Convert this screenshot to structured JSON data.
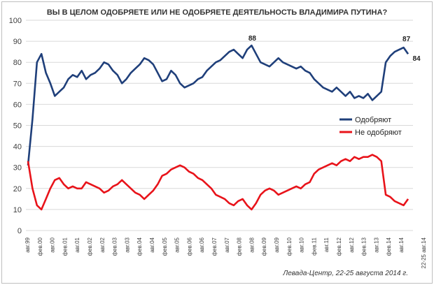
{
  "chart_data": {
    "type": "line",
    "title": "ВЫ В ЦЕЛОМ ОДОБРЯЕТЕ ИЛИ НЕ ОДОБРЯЕТЕ ДЕЯТЕЛЬНОСТЬ ВЛАДИМИРА ПУТИНА?",
    "ylim": [
      0,
      100
    ],
    "yticks": [
      0,
      10,
      20,
      30,
      40,
      50,
      60,
      70,
      80,
      90,
      100
    ],
    "grid": "horizontal",
    "legend_position": "right",
    "xticks": [
      "авг.99",
      "фев.00",
      "авг.00",
      "фев.01",
      "авг.01",
      "фев.02",
      "авг.02",
      "фев.03",
      "авг.03",
      "фев.04",
      "авг.04",
      "фев.05",
      "авг.05",
      "фев.06",
      "авг.06",
      "фев.07",
      "авг.07",
      "фев.08",
      "авг.08",
      "фев.09",
      "авг.09",
      "фев.10",
      "авг.10",
      "фев.11",
      "авг.11",
      "фев.12",
      "авг.12",
      "фев.13",
      "авг.13",
      "фев.14",
      "авг.14",
      "22-25 авг.14"
    ],
    "series": [
      {
        "name": "Одобряют",
        "color": "#1f3f7a",
        "values": [
          31,
          53,
          80,
          84,
          75,
          70,
          64,
          66,
          68,
          72,
          74,
          73,
          76,
          72,
          74,
          75,
          77,
          80,
          79,
          76,
          74,
          70,
          72,
          75,
          77,
          79,
          82,
          81,
          79,
          75,
          71,
          72,
          76,
          74,
          70,
          68,
          69,
          70,
          72,
          73,
          76,
          78,
          80,
          81,
          83,
          85,
          86,
          84,
          82,
          86,
          88,
          84,
          80,
          79,
          78,
          80,
          82,
          80,
          79,
          78,
          77,
          78,
          76,
          75,
          72,
          70,
          68,
          67,
          66,
          68,
          66,
          64,
          66,
          63,
          64,
          63,
          65,
          62,
          64,
          66,
          80,
          83,
          85,
          86,
          87,
          84
        ]
      },
      {
        "name": "Не одобряют",
        "color": "#e8131a",
        "values": [
          33,
          20,
          12,
          10,
          15,
          20,
          24,
          25,
          22,
          20,
          21,
          20,
          20,
          23,
          22,
          21,
          20,
          18,
          19,
          21,
          22,
          24,
          22,
          20,
          18,
          17,
          15,
          17,
          19,
          22,
          26,
          27,
          29,
          30,
          31,
          30,
          28,
          27,
          25,
          24,
          22,
          20,
          17,
          16,
          15,
          13,
          12,
          14,
          15,
          12,
          10,
          13,
          17,
          19,
          20,
          19,
          17,
          18,
          19,
          20,
          21,
          20,
          22,
          23,
          27,
          29,
          30,
          31,
          32,
          31,
          33,
          34,
          33,
          35,
          34,
          35,
          35,
          36,
          35,
          33,
          17,
          16,
          14,
          13,
          12,
          15
        ]
      }
    ],
    "annotations": [
      "88",
      "87",
      "84"
    ]
  },
  "source": "Левада-Центр, 22-25 августа 2014 г."
}
